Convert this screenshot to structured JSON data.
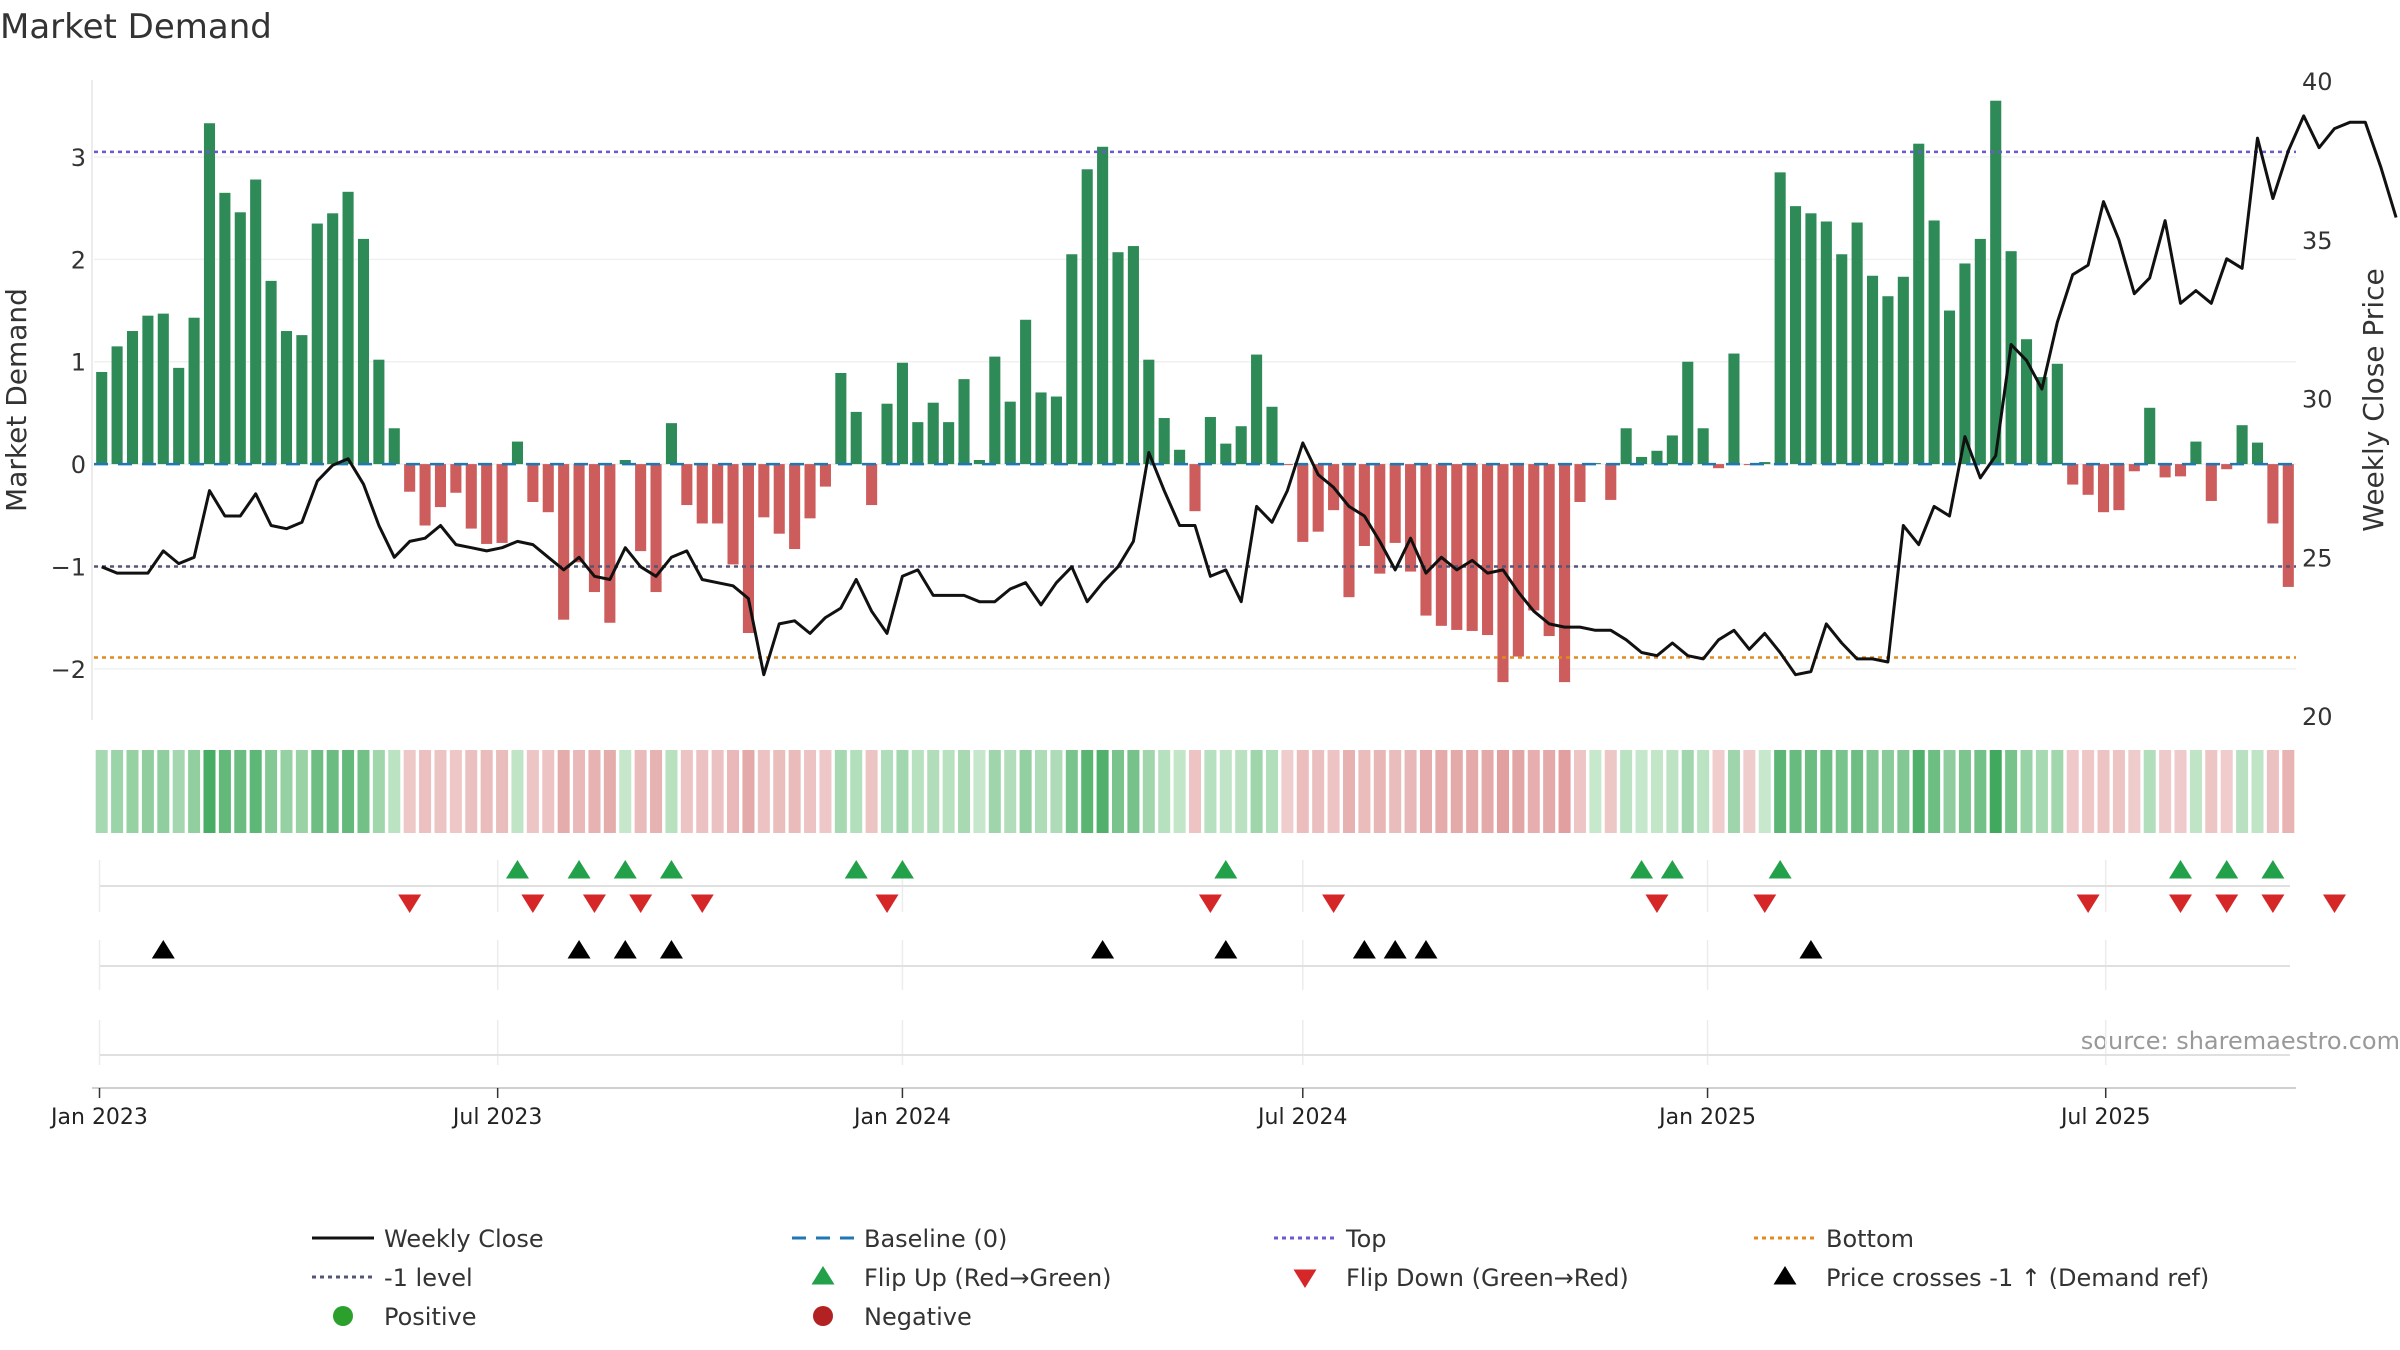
{
  "chart_data": {
    "type": "bar",
    "title": "Market Demand",
    "ylabel_left": "Market Demand",
    "ylabel_right": "Weekly Close Price",
    "ylim_left": [
      -2.5,
      3.85
    ],
    "ylim_right": [
      20,
      40
    ],
    "yticks_left": [
      3,
      2,
      1,
      0,
      -1,
      -2
    ],
    "yticks_right": [
      40,
      35,
      30,
      25,
      20
    ],
    "ytick_labels_left": [
      "3",
      "2",
      "1",
      "0",
      "−1",
      "−2"
    ],
    "ytick_labels_right": [
      "40",
      "35",
      "30",
      "25",
      "20"
    ],
    "top_level": 3.05,
    "ref_level": -1,
    "bottom_level": -1.89,
    "start_date": "2023-01-02",
    "xticks": [
      {
        "label": "Jan 2023",
        "date": "2023-01-01"
      },
      {
        "label": "Jul 2023",
        "date": "2023-07-01"
      },
      {
        "label": "Jan 2024",
        "date": "2024-01-01"
      },
      {
        "label": "Jul 2024",
        "date": "2024-07-01"
      },
      {
        "label": "Jan 2025",
        "date": "2025-01-01"
      },
      {
        "label": "Jul 2025",
        "date": "2025-07-01"
      }
    ],
    "demand": [
      0.9,
      1.15,
      1.3,
      1.45,
      1.47,
      0.94,
      1.43,
      3.33,
      2.65,
      2.46,
      2.78,
      1.79,
      1.3,
      1.26,
      2.35,
      2.45,
      2.66,
      2.2,
      1.02,
      0.35,
      -0.27,
      -0.6,
      -0.42,
      -0.28,
      -0.63,
      -0.78,
      -0.77,
      0.22,
      -0.37,
      -0.47,
      -1.52,
      -0.96,
      -1.25,
      -1.55,
      0.04,
      -0.85,
      -1.25,
      0.4,
      -0.4,
      -0.58,
      -0.58,
      -0.98,
      -1.65,
      -0.52,
      -0.68,
      -0.83,
      -0.53,
      -0.22,
      0.89,
      0.51,
      -0.4,
      0.59,
      0.99,
      0.41,
      0.6,
      0.41,
      0.83,
      0.04,
      1.05,
      0.61,
      1.41,
      0.7,
      0.66,
      2.05,
      2.88,
      3.1,
      2.07,
      2.13,
      1.02,
      0.45,
      0.14,
      -0.46,
      0.46,
      0.2,
      0.37,
      1.07,
      0.56,
      -0.01,
      -0.76,
      -0.66,
      -0.45,
      -1.3,
      -0.8,
      -1.07,
      -0.77,
      -1.05,
      -1.48,
      -1.58,
      -1.62,
      -1.63,
      -1.67,
      -2.13,
      -1.88,
      -1.43,
      -1.68,
      -2.13,
      -0.37,
      0.01,
      -0.35,
      0.35,
      0.07,
      0.13,
      0.28,
      1.0,
      0.35,
      -0.04,
      1.08,
      -0.01,
      0.02,
      2.85,
      2.52,
      2.45,
      2.37,
      2.05,
      2.36,
      1.84,
      1.64,
      1.83,
      3.13,
      2.38,
      1.5,
      1.96,
      2.2,
      3.55,
      2.08,
      1.22,
      0.85,
      0.98,
      -0.2,
      -0.3,
      -0.47,
      -0.45,
      -0.07,
      0.55,
      -0.13,
      -0.12,
      0.22,
      -0.36,
      -0.05,
      0.38,
      0.21,
      -0.58,
      -1.2
    ],
    "close": [
      24.7,
      24.5,
      24.5,
      24.5,
      25.2,
      24.8,
      25.0,
      27.1,
      26.3,
      26.3,
      27.0,
      26.0,
      25.9,
      26.1,
      27.4,
      27.9,
      28.1,
      27.3,
      26.0,
      25.0,
      25.5,
      25.6,
      26.0,
      25.4,
      25.3,
      25.2,
      25.3,
      25.5,
      25.4,
      25.0,
      24.6,
      25.0,
      24.4,
      24.3,
      25.3,
      24.7,
      24.4,
      25.0,
      25.2,
      24.3,
      24.2,
      24.1,
      23.7,
      21.3,
      22.9,
      23.0,
      22.6,
      23.1,
      23.4,
      24.3,
      23.3,
      22.6,
      24.4,
      24.6,
      23.8,
      23.8,
      23.8,
      23.6,
      23.6,
      24.0,
      24.2,
      23.5,
      24.2,
      24.7,
      23.6,
      24.2,
      24.7,
      25.5,
      28.3,
      27.1,
      26.0,
      26.0,
      24.4,
      24.6,
      23.6,
      26.6,
      26.1,
      27.1,
      28.6,
      27.6,
      27.2,
      26.6,
      26.3,
      25.5,
      24.6,
      25.6,
      24.5,
      25.0,
      24.6,
      24.9,
      24.5,
      24.6,
      23.9,
      23.3,
      22.9,
      22.8,
      22.8,
      22.7,
      22.7,
      22.4,
      22.0,
      21.9,
      22.3,
      21.9,
      21.8,
      22.4,
      22.7,
      22.1,
      22.6,
      22.0,
      21.3,
      21.4,
      22.9,
      22.3,
      21.8,
      21.8,
      21.7,
      26.0,
      25.4,
      26.6,
      26.3,
      28.8,
      27.5,
      28.2,
      31.7,
      31.2,
      30.3,
      32.4,
      33.9,
      34.2,
      36.2,
      35.0,
      33.3,
      33.8,
      35.6,
      33.0,
      33.4,
      33.0,
      34.4,
      34.1,
      38.2,
      36.3,
      37.8,
      38.9,
      37.9,
      38.5,
      38.7,
      38.7,
      37.3,
      35.7
    ],
    "flip_up_weeks": [
      27,
      31,
      34,
      37,
      49,
      52,
      73,
      100,
      102,
      109,
      135,
      138,
      141
    ],
    "flip_down_weeks": [
      20,
      28,
      32,
      35,
      39,
      51,
      72,
      80,
      101,
      108,
      129,
      135,
      138,
      141,
      145
    ],
    "price_cross_weeks": [
      4,
      31,
      34,
      37,
      65,
      73,
      82,
      84,
      86,
      111
    ],
    "legend": [
      {
        "label": "Weekly Close",
        "kind": "line",
        "color": "#111111"
      },
      {
        "label": "Baseline (0)",
        "kind": "dashed",
        "color": "#1f77b4"
      },
      {
        "label": "Top",
        "kind": "dotted",
        "color": "#6a5acd"
      },
      {
        "label": "Bottom",
        "kind": "dotted",
        "color": "#e08a1e"
      },
      {
        "label": "-1 level",
        "kind": "dotted",
        "color": "#555577"
      },
      {
        "label": "Flip Up (Red→Green)",
        "kind": "up",
        "color": "#22a04a"
      },
      {
        "label": "Flip Down (Green→Red)",
        "kind": "down",
        "color": "#d62728"
      },
      {
        "label": "Price crosses -1 ↑ (Demand ref)",
        "kind": "black-up",
        "color": "#000000"
      },
      {
        "label": "Positive",
        "kind": "dot",
        "color": "#2ca02c"
      },
      {
        "label": "Negative",
        "kind": "dot",
        "color": "#b22222"
      }
    ],
    "source": "source: sharemaestro.com"
  },
  "colors": {
    "positive_bar": "#2e8b57",
    "negative_bar": "#cd5c5c",
    "price_line": "#111111",
    "baseline": "#1f77b4",
    "top": "#6a5acd",
    "bottom": "#e08a1e",
    "ref": "#555577",
    "flip_up": "#22a04a",
    "flip_down": "#d62728",
    "cross": "#000000"
  }
}
